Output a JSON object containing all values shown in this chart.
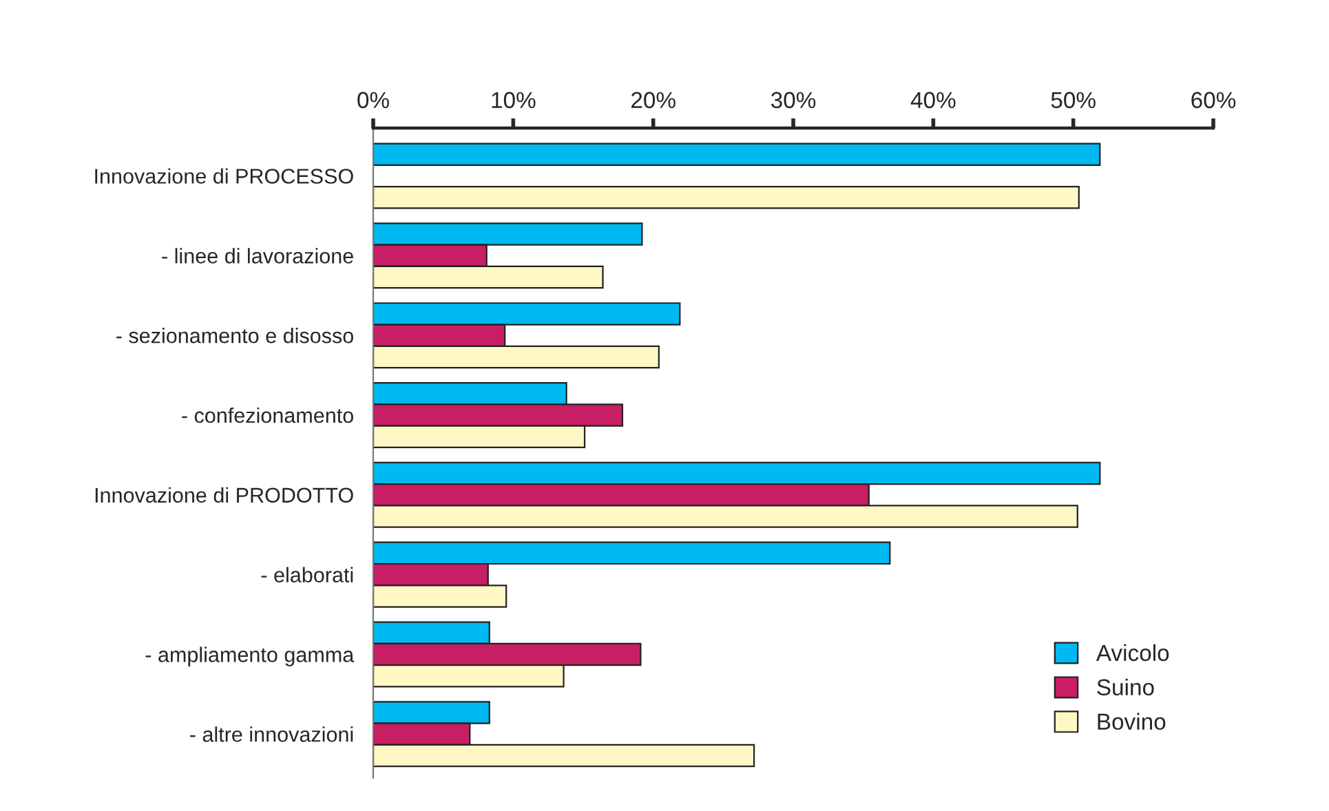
{
  "chart_data": {
    "type": "bar",
    "orientation": "horizontal",
    "categories": [
      "Innovazione di PROCESSO",
      "- linee di lavorazione",
      "- sezionamento e disosso",
      "- confezionamento",
      "Innovazione di PRODOTTO",
      "- elaborati",
      "- ampliamento gamma",
      "- altre innovazioni"
    ],
    "series": [
      {
        "name": "Avicolo",
        "color": "#00b9f0",
        "values": [
          51.9,
          19.2,
          21.9,
          13.8,
          51.9,
          36.9,
          8.3,
          8.3
        ]
      },
      {
        "name": "Suino",
        "color": "#c81e64",
        "values": [
          null,
          8.1,
          9.4,
          17.8,
          35.4,
          8.2,
          19.1,
          6.9
        ]
      },
      {
        "name": "Bovino",
        "color": "#fff8c4",
        "values": [
          50.4,
          16.4,
          20.4,
          15.1,
          50.3,
          9.5,
          13.6,
          27.2
        ]
      }
    ],
    "xlim": [
      0,
      60
    ],
    "xticks": [
      {
        "value": 0,
        "label": "0%"
      },
      {
        "value": 10,
        "label": "10%"
      },
      {
        "value": 20,
        "label": "20%"
      },
      {
        "value": 30,
        "label": "30%"
      },
      {
        "value": 40,
        "label": "40%"
      },
      {
        "value": 50,
        "label": "50%"
      },
      {
        "value": 60,
        "label": "60%"
      }
    ],
    "grid": false,
    "legend": "bottom right"
  }
}
